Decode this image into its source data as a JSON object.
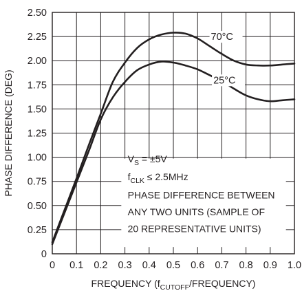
{
  "chart_data": {
    "type": "line",
    "xlabel_main": "FREQUENCY (f",
    "xlabel_sub": "CUTOFF",
    "xlabel_tail": "/FREQUENCY)",
    "ylabel": "PHASE DIFFERENCE (DEG)",
    "xlim": [
      0,
      1.0
    ],
    "ylim": [
      0,
      2.5
    ],
    "x_ticks": [
      "0",
      "0.1",
      "0.2",
      "0.3",
      "0.4",
      "0.5",
      "0.6",
      "0.7",
      "0.8",
      "0.9",
      "1.0"
    ],
    "y_ticks": [
      "0",
      "0.25",
      "0.50",
      "0.75",
      "1.00",
      "1.25",
      "1.50",
      "1.75",
      "2.00",
      "2.25",
      "2.50"
    ],
    "grid": true,
    "series": [
      {
        "name": "70°C",
        "x": [
          0,
          0.05,
          0.1,
          0.15,
          0.2,
          0.25,
          0.3,
          0.35,
          0.4,
          0.45,
          0.5,
          0.55,
          0.6,
          0.65,
          0.7,
          0.75,
          0.8,
          0.85,
          0.9,
          0.95,
          1.0
        ],
        "y": [
          0.12,
          0.45,
          0.78,
          1.12,
          1.45,
          1.78,
          1.98,
          2.13,
          2.22,
          2.27,
          2.29,
          2.28,
          2.23,
          2.15,
          2.07,
          2.0,
          1.96,
          1.95,
          1.95,
          1.96,
          1.97
        ]
      },
      {
        "name": "25°C",
        "x": [
          0,
          0.05,
          0.1,
          0.15,
          0.2,
          0.25,
          0.3,
          0.35,
          0.4,
          0.45,
          0.5,
          0.55,
          0.6,
          0.65,
          0.7,
          0.75,
          0.8,
          0.85,
          0.9,
          0.95,
          1.0
        ],
        "y": [
          0.1,
          0.42,
          0.74,
          1.06,
          1.39,
          1.62,
          1.78,
          1.9,
          1.96,
          1.99,
          1.98,
          1.95,
          1.91,
          1.85,
          1.79,
          1.71,
          1.64,
          1.6,
          1.58,
          1.59,
          1.6
        ]
      }
    ],
    "annotation": {
      "vs_main": "V",
      "vs_sub": "S",
      "vs_tail": " = ±5V",
      "fclk_main": "f",
      "fclk_sub": "CLK",
      "fclk_tail": " ≤ 2.5MHz",
      "line3": "PHASE DIFFERENCE BETWEEN",
      "line4": "ANY TWO UNITS (SAMPLE OF",
      "line5": "20 REPRESENTATIVE UNITS)"
    },
    "curve_labels": {
      "hot": "70°C",
      "room": "25°C"
    }
  },
  "colors": {
    "line": "#231f20",
    "grid": "#231f20",
    "background": "#ffffff"
  }
}
